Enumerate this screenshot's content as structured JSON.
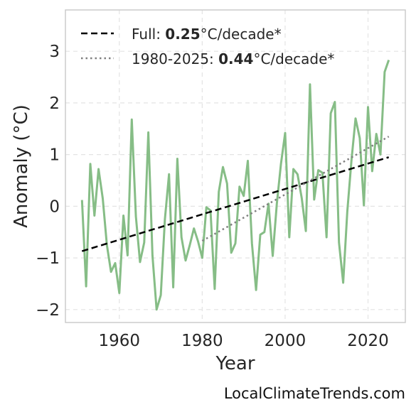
{
  "chart_data": {
    "type": "line",
    "xlabel": "Year",
    "ylabel": "Anomaly (°C)",
    "xlim": [
      1947,
      2029
    ],
    "ylim": [
      -2.25,
      3.8
    ],
    "x_ticks": [
      1960,
      1980,
      2000,
      2020
    ],
    "y_ticks": [
      -2,
      -1,
      0,
      1,
      2,
      3
    ],
    "y_tick_labels": [
      "−2",
      "−1",
      "0",
      "1",
      "2",
      "3"
    ],
    "grid": true,
    "legend_position": "top-left",
    "series": [
      {
        "style": "solid",
        "color": "#86bd86",
        "x": [
          1951,
          1952,
          1953,
          1954,
          1955,
          1956,
          1957,
          1958,
          1959,
          1960,
          1961,
          1962,
          1963,
          1964,
          1965,
          1966,
          1967,
          1968,
          1969,
          1970,
          1971,
          1972,
          1973,
          1974,
          1975,
          1976,
          1977,
          1978,
          1979,
          1980,
          1981,
          1982,
          1983,
          1984,
          1985,
          1986,
          1987,
          1988,
          1989,
          1990,
          1991,
          1992,
          1993,
          1994,
          1995,
          1996,
          1997,
          1998,
          1999,
          2000,
          2001,
          2002,
          2003,
          2004,
          2005,
          2006,
          2007,
          2008,
          2009,
          2010,
          2011,
          2012,
          2013,
          2014,
          2015,
          2016,
          2017,
          2018,
          2019,
          2020,
          2021,
          2022,
          2023,
          2024,
          2025
        ],
        "y": [
          0.12,
          -1.55,
          0.82,
          -0.18,
          0.72,
          0.15,
          -0.75,
          -1.27,
          -1.1,
          -1.68,
          -0.18,
          -0.95,
          1.68,
          -0.2,
          -1.08,
          -0.7,
          1.43,
          -0.95,
          -2.0,
          -1.72,
          -0.25,
          0.62,
          -1.57,
          0.92,
          -0.6,
          -1.05,
          -0.75,
          -0.43,
          -0.68,
          -1.0,
          -0.02,
          -0.08,
          -1.6,
          0.28,
          0.76,
          0.44,
          -0.9,
          -0.72,
          0.38,
          0.2,
          0.88,
          -0.72,
          -1.62,
          -0.55,
          -0.5,
          0.05,
          -0.96,
          0.05,
          0.82,
          1.42,
          -0.6,
          0.72,
          0.62,
          0.16,
          -0.48,
          2.36,
          0.13,
          0.7,
          0.65,
          -0.6,
          1.8,
          2.02,
          -0.7,
          -1.48,
          -0.1,
          0.88,
          1.7,
          1.32,
          0.02,
          1.92,
          0.68,
          1.4,
          1.0,
          2.6,
          2.83
        ]
      },
      {
        "name": "Full",
        "style": "dashed",
        "color": "#000000",
        "x": [
          1951,
          2025
        ],
        "y": [
          -0.87,
          0.95
        ]
      },
      {
        "name": "1980-2025",
        "style": "dotted",
        "color": "#808080",
        "x": [
          1980,
          2025
        ],
        "y": [
          -0.67,
          1.35
        ]
      }
    ],
    "legend": [
      {
        "prefix": "Full: ",
        "value": "0.25",
        "suffix": "°C/decade*",
        "style": "dashed",
        "color": "#000000"
      },
      {
        "prefix": "1980-2025: ",
        "value": "0.44",
        "suffix": "°C/decade*",
        "style": "dotted",
        "color": "#808080"
      }
    ]
  },
  "watermark": "LocalClimateTrends.com"
}
